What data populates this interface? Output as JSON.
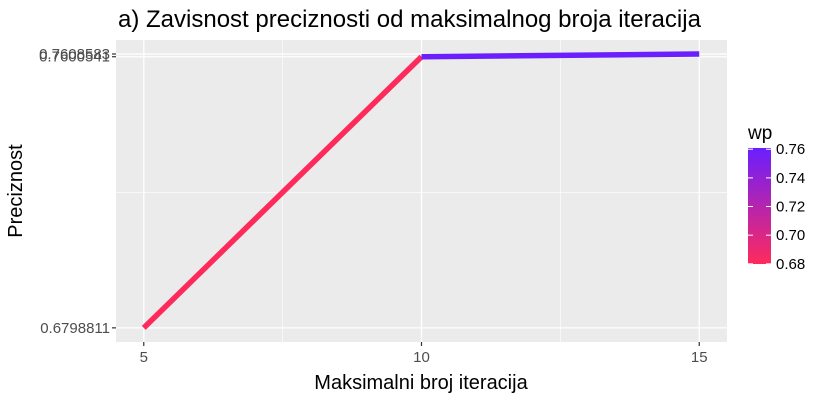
{
  "chart_data": {
    "type": "line",
    "title": "a) Zavisnost preciznosti od maksimalnog broja iteracija",
    "xlabel": "Maksimalni broj iteracija",
    "ylabel": "Preciznost",
    "x": [
      5,
      10,
      15
    ],
    "series": [
      {
        "values": [
          0.6798811,
          0.7600541,
          0.7608583
        ]
      }
    ],
    "x_ticks": [
      5,
      10,
      15
    ],
    "y_ticks": [
      0.6798811,
      0.7600541,
      0.7608583
    ],
    "y_tick_labels": [
      "0.6798811",
      "0.7600541",
      "0.7608583"
    ],
    "xlim": [
      4.5,
      15.5
    ],
    "ylim": [
      0.6757,
      0.765
    ],
    "grid": true,
    "color_legend": {
      "title": "wp",
      "labels": [
        "0.76",
        "0.74",
        "0.72",
        "0.70",
        "0.68"
      ],
      "values": [
        0.76,
        0.74,
        0.72,
        0.7,
        0.68
      ],
      "range": [
        0.6798811,
        0.7608583
      ],
      "low_color": "#ff2a5c",
      "high_color": "#6a1fff",
      "placement": "right"
    },
    "panel_background": "#ebebeb",
    "grid_color": "#ffffff"
  }
}
